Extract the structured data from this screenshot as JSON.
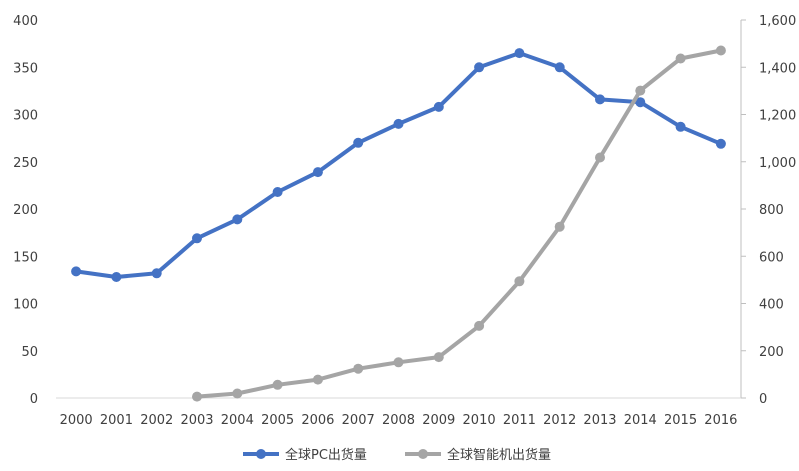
{
  "chart_data": {
    "type": "line",
    "categories": [
      "2000",
      "2001",
      "2002",
      "2003",
      "2004",
      "2005",
      "2006",
      "2007",
      "2008",
      "2009",
      "2010",
      "2011",
      "2012",
      "2013",
      "2014",
      "2015",
      "2016"
    ],
    "series": [
      {
        "name": "全球PC出货量",
        "axis": "left",
        "color": "#4472C4",
        "values": [
          134,
          128,
          132,
          169,
          189,
          218,
          239,
          270,
          290,
          308,
          350,
          365,
          350,
          316,
          313,
          287,
          269
        ]
      },
      {
        "name": "全球智能机出货量",
        "axis": "right",
        "color": "#A5A5A5",
        "values": [
          null,
          null,
          null,
          6,
          19,
          56,
          78,
          124,
          151,
          173,
          305,
          494,
          725,
          1018,
          1301,
          1437,
          1471
        ]
      }
    ],
    "y_left": {
      "ylim": [
        0,
        400
      ],
      "ticks": [
        "0",
        "50",
        "100",
        "150",
        "200",
        "250",
        "300",
        "350",
        "400"
      ]
    },
    "y_right": {
      "ylim": [
        0,
        1600
      ],
      "ticks": [
        "0",
        "200",
        "400",
        "600",
        "800",
        "1,000",
        "1,200",
        "1,400",
        "1,600"
      ]
    },
    "legend_position": "bottom",
    "grid": false
  }
}
